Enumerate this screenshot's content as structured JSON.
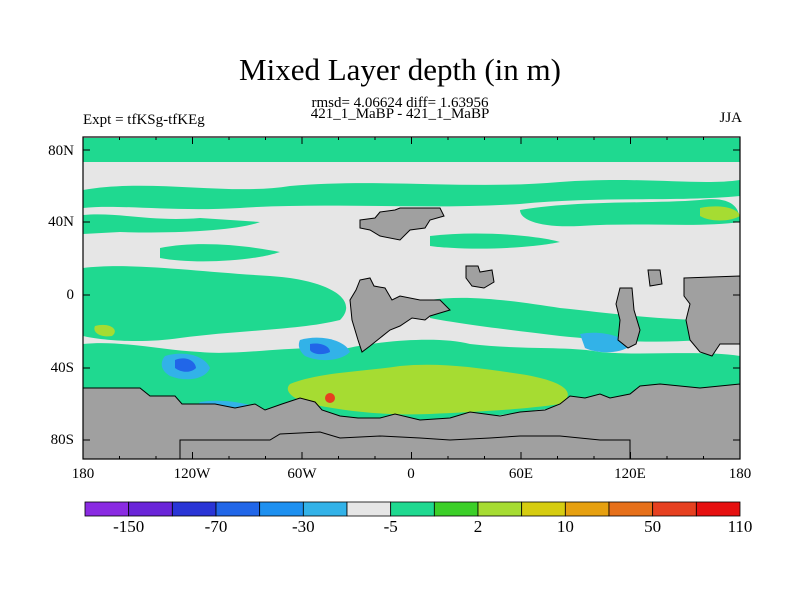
{
  "title": "Mixed Layer depth (in m)",
  "stats": "rmsd= 4.06624 diff= 1.63956",
  "subtitle": "421_1_MaBP - 421_1_MaBP",
  "left_label": "Expt = tfKSg-tfKEg",
  "right_label": "JJA",
  "lat_labels": [
    "80N",
    "40N",
    "0",
    "40S",
    "80S"
  ],
  "lon_labels": [
    "180",
    "120W",
    "60W",
    "0",
    "60E",
    "120E",
    "180"
  ],
  "colorbar": {
    "colors": [
      "#8a2be2",
      "#6a25d8",
      "#2a35d6",
      "#2166e8",
      "#1e90f0",
      "#32b2e8",
      "#e6e6e6",
      "#1fd990",
      "#3ccf28",
      "#a6dc32",
      "#d6cc10",
      "#e6a010",
      "#e6701a",
      "#e64020",
      "#e61010"
    ],
    "labels": [
      "-150",
      "-70",
      "-30",
      "-5",
      "2",
      "10",
      "50",
      "110"
    ]
  },
  "colors": {
    "land": "#a0a0a0",
    "ocean_neutral": "#e6e6e6",
    "positive_small": "#1fd990",
    "positive_mid": "#a6dc32",
    "negative_small": "#32b2e8",
    "negative_mid": "#2166e8",
    "high": "#e64020"
  }
}
